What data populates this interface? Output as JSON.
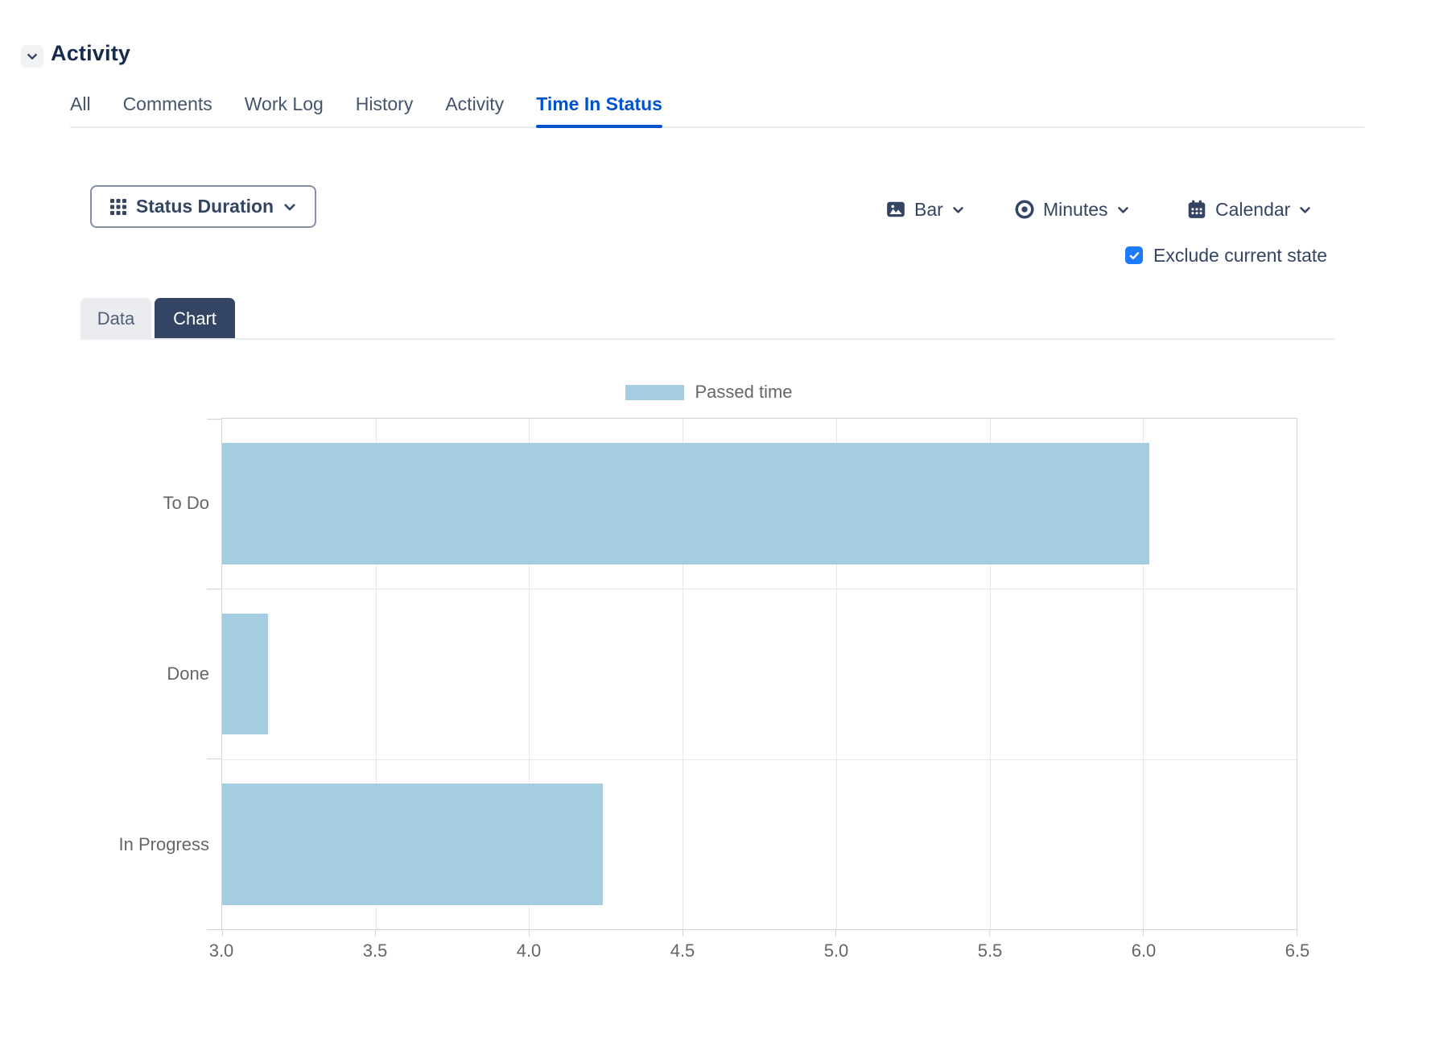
{
  "header": {
    "title": "Activity"
  },
  "activity_tabs": {
    "items": [
      {
        "label": "All",
        "active": false
      },
      {
        "label": "Comments",
        "active": false
      },
      {
        "label": "Work Log",
        "active": false
      },
      {
        "label": "History",
        "active": false
      },
      {
        "label": "Activity",
        "active": false
      },
      {
        "label": "Time In Status",
        "active": true
      }
    ]
  },
  "toolbar": {
    "status_duration": {
      "label": "Status Duration",
      "icon": "grid-icon"
    },
    "chart_type": {
      "label": "Bar",
      "icon": "image-icon"
    },
    "unit": {
      "label": "Minutes",
      "icon": "eye-icon"
    },
    "calendar": {
      "label": "Calendar",
      "icon": "calendar-icon"
    },
    "exclude_checkbox": {
      "label": "Exclude current state",
      "checked": true
    }
  },
  "view_tabs": {
    "data_label": "Data",
    "chart_label": "Chart",
    "active": "Chart"
  },
  "chart_data": {
    "type": "bar",
    "orientation": "horizontal",
    "legend": {
      "position": "top",
      "entries": [
        {
          "label": "Passed time",
          "color": "#A4CDE2"
        }
      ]
    },
    "categories": [
      "To Do",
      "Done",
      "In Progress"
    ],
    "series": [
      {
        "name": "Passed time",
        "values": [
          6.02,
          3.15,
          4.24
        ],
        "color": "#A4CDE2"
      }
    ],
    "xlabel": "",
    "ylabel": "",
    "xlim": [
      3.0,
      6.5
    ],
    "x_ticks": [
      3.0,
      3.5,
      4.0,
      4.5,
      5.0,
      5.5,
      6.0,
      6.5
    ],
    "x_tick_labels": [
      "3.0",
      "3.5",
      "4.0",
      "4.5",
      "5.0",
      "5.5",
      "6.0",
      "6.5"
    ],
    "grid": true
  },
  "colors": {
    "accent_blue": "#0052CC",
    "checkbox_blue": "#1D7AFC",
    "dark_navy": "#344563",
    "title_navy": "#172B4D",
    "bar_fill": "#A4CDE2",
    "axis_text": "#666666",
    "gridline": "#E9E9E9",
    "plot_border": "#D4D4D4"
  }
}
